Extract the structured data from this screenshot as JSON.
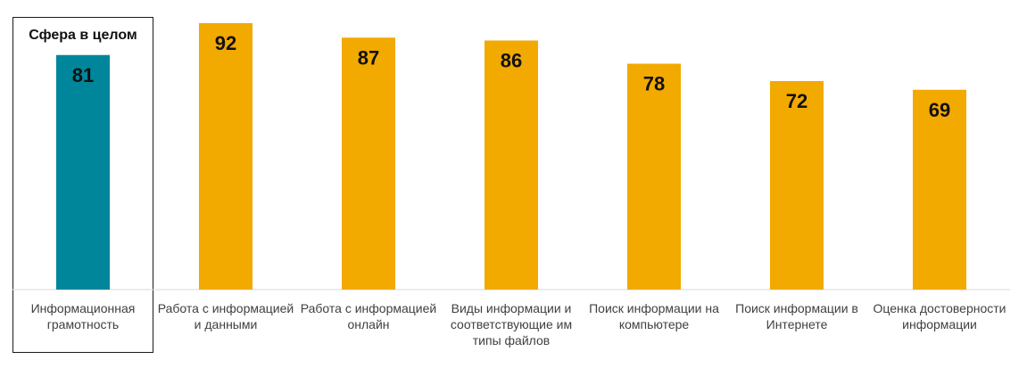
{
  "chart_data": {
    "type": "bar",
    "highlight_title": "Сфера в целом",
    "categories": [
      "Информационная грамотность",
      "Работа с информацией и данными",
      "Работа с информацией онлайн",
      "Виды информации и соответствующие им типы файлов",
      "Поиск информации на компьютере",
      "Поиск информации в Интернете",
      "Оценка достоверности информации"
    ],
    "values": [
      81,
      92,
      87,
      86,
      78,
      72,
      69
    ],
    "bar_colors": [
      "#00869A",
      "#F2A900",
      "#F2A900",
      "#F2A900",
      "#F2A900",
      "#F2A900",
      "#F2A900"
    ],
    "ylim": [
      0,
      100
    ],
    "grid": false,
    "legend": "none"
  }
}
